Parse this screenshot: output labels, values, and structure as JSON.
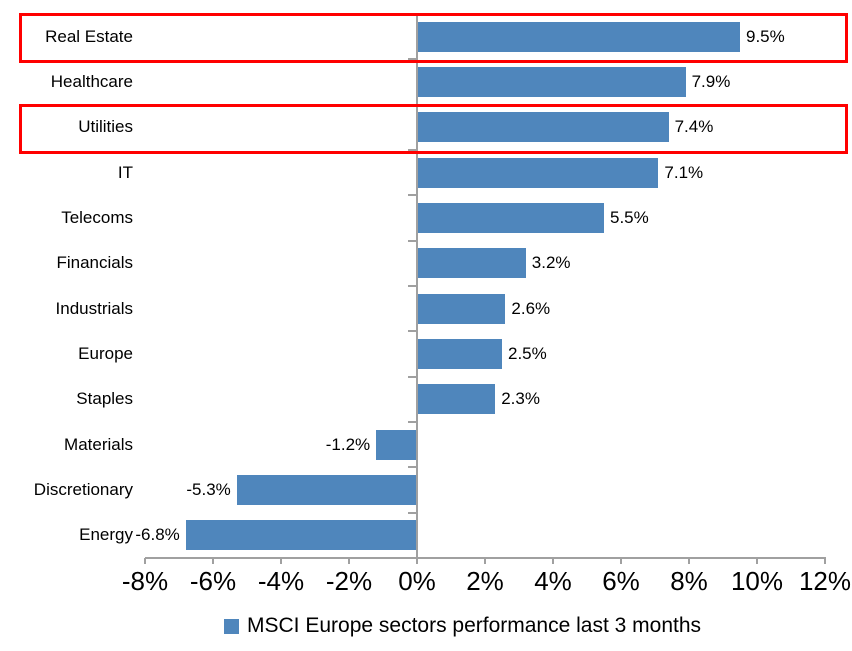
{
  "chart_data": {
    "type": "bar",
    "orientation": "horizontal",
    "title": "",
    "categories": [
      "Real Estate",
      "Healthcare",
      "Utilities",
      "IT",
      "Telecoms",
      "Financials",
      "Industrials",
      "Europe",
      "Staples",
      "Materials",
      "Discretionary",
      "Energy"
    ],
    "values": [
      9.5,
      7.9,
      7.4,
      7.1,
      5.5,
      3.2,
      2.6,
      2.5,
      2.3,
      -1.2,
      -5.3,
      -6.8
    ],
    "value_labels": [
      "9.5%",
      "7.9%",
      "7.4%",
      "7.1%",
      "5.5%",
      "3.2%",
      "2.6%",
      "2.5%",
      "2.3%",
      "-1.2%",
      "-5.3%",
      "-6.8%"
    ],
    "xlim": [
      -8,
      12
    ],
    "x_tick_values": [
      -8,
      -6,
      -4,
      -2,
      0,
      2,
      4,
      6,
      8,
      10,
      12
    ],
    "x_tick_labels": [
      "-8%",
      "-6%",
      "-4%",
      "-2%",
      "0%",
      "2%",
      "4%",
      "6%",
      "8%",
      "10%",
      "12%"
    ],
    "grid": false,
    "legend": "MSCI Europe sectors performance last 3 months",
    "legend_position": "bottom-center",
    "highlighted_categories": [
      "Real Estate",
      "Utilities"
    ],
    "colors": {
      "bar": "#4F86BC",
      "highlight_box": "#FF0000",
      "axis_line": "#A0A0A0",
      "text": "#000000",
      "background": "#FFFFFF"
    }
  }
}
